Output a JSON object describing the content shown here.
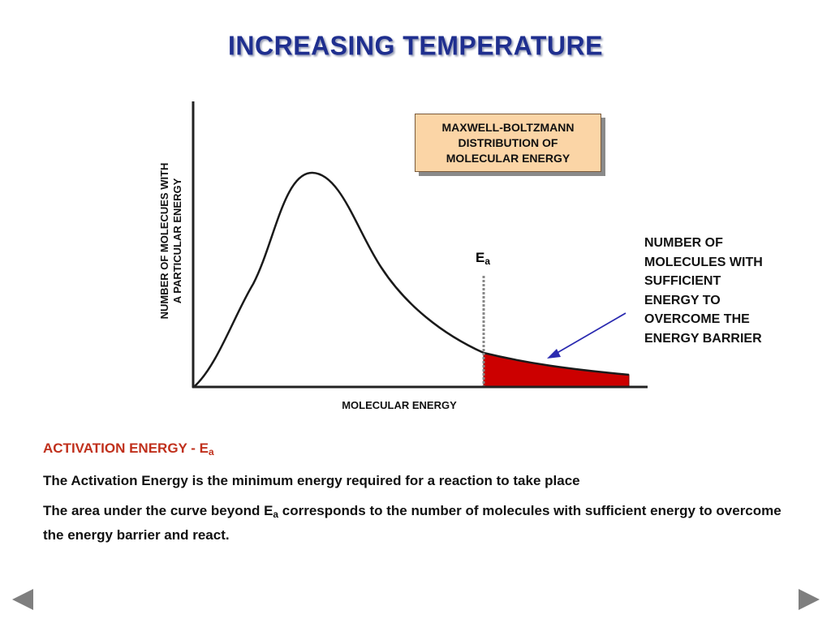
{
  "slide": {
    "title": "INCREASING TEMPERATURE"
  },
  "diagram": {
    "box_lines": [
      "MAXWELL-BOLTZMANN",
      "DISTRIBUTION OF",
      "MOLECULAR ENERGY"
    ],
    "y_axis_label_lines": [
      "NUMBER OF MOLECUES WITH",
      "A PARTICULAR ENERGY"
    ],
    "x_axis_label": "MOLECULAR ENERGY",
    "ea_symbol": "E",
    "ea_subscript": "a",
    "annotation_lines": [
      "NUMBER OF",
      "MOLECULES WITH",
      "SUFFICIENT",
      "ENERGY TO",
      "OVERCOME THE",
      "ENERGY BARRIER"
    ],
    "colors": {
      "curve": "#1a1a1a",
      "shaded_area": "#cc0000",
      "axis": "#222222",
      "arrow": "#2a2ab0",
      "box_fill": "#fbd5a6",
      "ea_line": "#888888"
    }
  },
  "text": {
    "heading_main": "ACTIVATION ENERGY - E",
    "heading_sub": "a",
    "p1": "The Activation Energy is the minimum energy required for a reaction to take place",
    "p2_before": "The area under the curve beyond E",
    "p2_sub": "a",
    "p2_after": " corresponds to the number of molecules with sufficient energy to overcome the energy barrier and react."
  },
  "navigation": {
    "prev_icon": "triangle-left-icon",
    "next_icon": "triangle-right-icon"
  }
}
